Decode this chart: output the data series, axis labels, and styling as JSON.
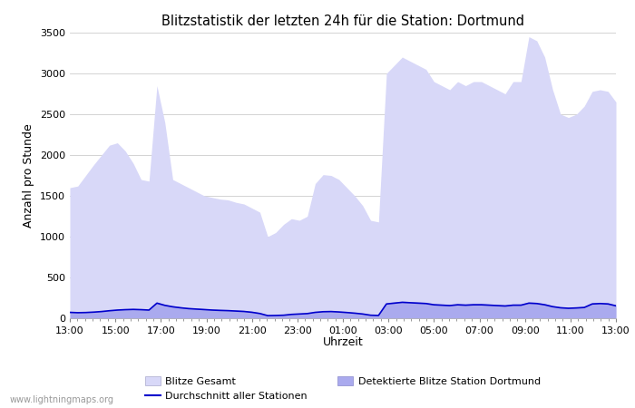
{
  "title": "Blitzstatistik der letzten 24h für die Station: Dortmund",
  "xlabel": "Uhrzeit",
  "ylabel": "Anzahl pro Stunde",
  "ylim": [
    0,
    3500
  ],
  "yticks": [
    0,
    500,
    1000,
    1500,
    2000,
    2500,
    3000,
    3500
  ],
  "xtick_labels": [
    "13:00",
    "15:00",
    "17:00",
    "19:00",
    "21:00",
    "23:00",
    "01:00",
    "03:00",
    "05:00",
    "07:00",
    "09:00",
    "11:00",
    "13:00"
  ],
  "background_color": "#ffffff",
  "fill_gesamt_color": "#d8d8f8",
  "fill_station_color": "#aaaaee",
  "line_color": "#0000cc",
  "watermark": "www.lightningmaps.org",
  "legend_items": [
    {
      "label": "Blitze Gesamt",
      "color": "#d8d8f8",
      "type": "fill"
    },
    {
      "label": "Durchschnitt aller Stationen",
      "color": "#0000cc",
      "type": "line"
    },
    {
      "label": "Detektierte Blitze Station Dortmund",
      "color": "#aaaaee",
      "type": "fill"
    },
    {
      "label": "",
      "color": null,
      "type": "empty"
    }
  ],
  "blitze_gesamt": [
    1600,
    1620,
    1750,
    1880,
    2000,
    2120,
    2150,
    2050,
    1900,
    1700,
    1680,
    2850,
    2400,
    1700,
    1650,
    1600,
    1550,
    1500,
    1480,
    1460,
    1450,
    1420,
    1400,
    1350,
    1300,
    1000,
    1050,
    1150,
    1220,
    1200,
    1250,
    1650,
    1760,
    1750,
    1700,
    1600,
    1500,
    1380,
    1200,
    1180,
    3000,
    3100,
    3200,
    3150,
    3100,
    3050,
    2900,
    2850,
    2800,
    2900,
    2850,
    2900,
    2900,
    2850,
    2800,
    2750,
    2900,
    2900,
    3450,
    3400,
    3200,
    2800,
    2500,
    2460,
    2500,
    2600,
    2780,
    2800,
    2780,
    2650
  ],
  "blitze_station": [
    80,
    75,
    78,
    82,
    90,
    100,
    110,
    115,
    120,
    115,
    110,
    200,
    170,
    155,
    140,
    130,
    125,
    118,
    112,
    108,
    105,
    100,
    95,
    85,
    70,
    40,
    42,
    45,
    55,
    60,
    65,
    80,
    88,
    90,
    85,
    78,
    70,
    60,
    45,
    42,
    190,
    200,
    210,
    205,
    200,
    195,
    180,
    175,
    170,
    180,
    175,
    180,
    180,
    175,
    170,
    165,
    175,
    175,
    200,
    195,
    180,
    155,
    140,
    135,
    138,
    145,
    190,
    195,
    190,
    165
  ],
  "durchschnitt": [
    72,
    68,
    70,
    75,
    82,
    92,
    100,
    105,
    108,
    105,
    100,
    185,
    158,
    140,
    128,
    118,
    112,
    106,
    100,
    96,
    93,
    88,
    83,
    73,
    58,
    32,
    34,
    37,
    47,
    52,
    57,
    72,
    80,
    82,
    77,
    70,
    62,
    52,
    37,
    34,
    175,
    185,
    195,
    190,
    185,
    180,
    165,
    160,
    155,
    165,
    160,
    165,
    165,
    160,
    155,
    150,
    160,
    160,
    185,
    180,
    165,
    142,
    128,
    122,
    126,
    132,
    175,
    180,
    175,
    152
  ]
}
